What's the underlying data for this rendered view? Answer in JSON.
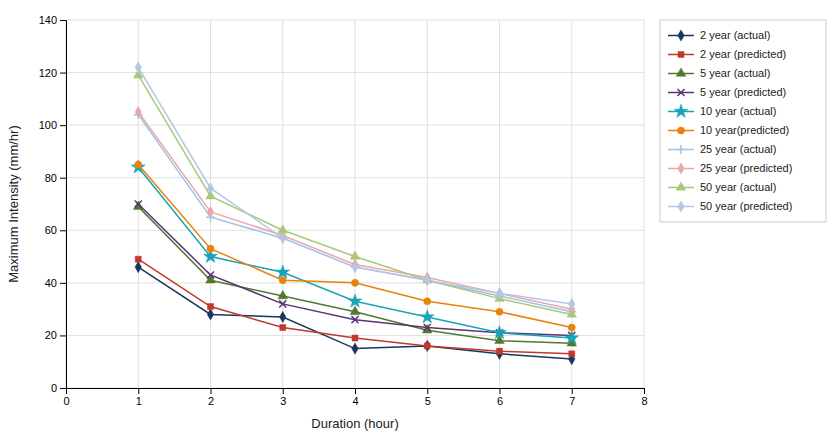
{
  "chart_data": {
    "type": "line",
    "xlabel": "Duration (hour)",
    "ylabel": "Maximum Intensity (mm/hr)",
    "x": [
      1,
      2,
      3,
      4,
      5,
      6,
      7
    ],
    "series": [
      {
        "name": "2 year (actual)",
        "color": "#17375e",
        "marker": "diamond",
        "values": [
          46,
          28,
          27,
          15,
          16,
          13,
          11
        ]
      },
      {
        "name": "2 year (predicted)",
        "color": "#c0392b",
        "marker": "square",
        "values": [
          49,
          31,
          23,
          19,
          16,
          14,
          13
        ]
      },
      {
        "name": "5 year (actual)",
        "color": "#4e7a2e",
        "marker": "triangle",
        "values": [
          69,
          41,
          35,
          29,
          22,
          18,
          17
        ]
      },
      {
        "name": "5 year (predicted)",
        "color": "#5a3472",
        "marker": "x",
        "values": [
          70,
          43,
          32,
          26,
          23,
          21,
          20
        ]
      },
      {
        "name": "10 year (actual)",
        "color": "#17a3b8",
        "marker": "star",
        "values": [
          84,
          50,
          44,
          33,
          27,
          21,
          19
        ]
      },
      {
        "name": "10 year(predicted)",
        "color": "#e8820c",
        "marker": "circle",
        "values": [
          85,
          53,
          41,
          40,
          33,
          29,
          23
        ]
      },
      {
        "name": "25 year (actual)",
        "color": "#9dc3e6",
        "marker": "plus",
        "values": [
          104,
          65,
          57,
          46,
          41,
          35,
          29
        ]
      },
      {
        "name": "25 year (predicted)",
        "color": "#e8a8a8",
        "marker": "diamond",
        "values": [
          105,
          67,
          58,
          47,
          42,
          36,
          30
        ]
      },
      {
        "name": "50 year (actual)",
        "color": "#a9c87a",
        "marker": "triangle",
        "values": [
          119,
          73,
          60,
          50,
          41,
          34,
          28
        ]
      },
      {
        "name": "50 year (predicted)",
        "color": "#b4c6e7",
        "marker": "diamond",
        "values": [
          122,
          76,
          57,
          46,
          41,
          36,
          32
        ]
      }
    ],
    "xlim": [
      0,
      8
    ],
    "ylim": [
      0,
      140
    ],
    "xticks": [
      0,
      1,
      2,
      3,
      4,
      5,
      6,
      7,
      8
    ],
    "yticks": [
      0,
      20,
      40,
      60,
      80,
      100,
      120,
      140
    ],
    "grid": true,
    "legend": "right"
  }
}
